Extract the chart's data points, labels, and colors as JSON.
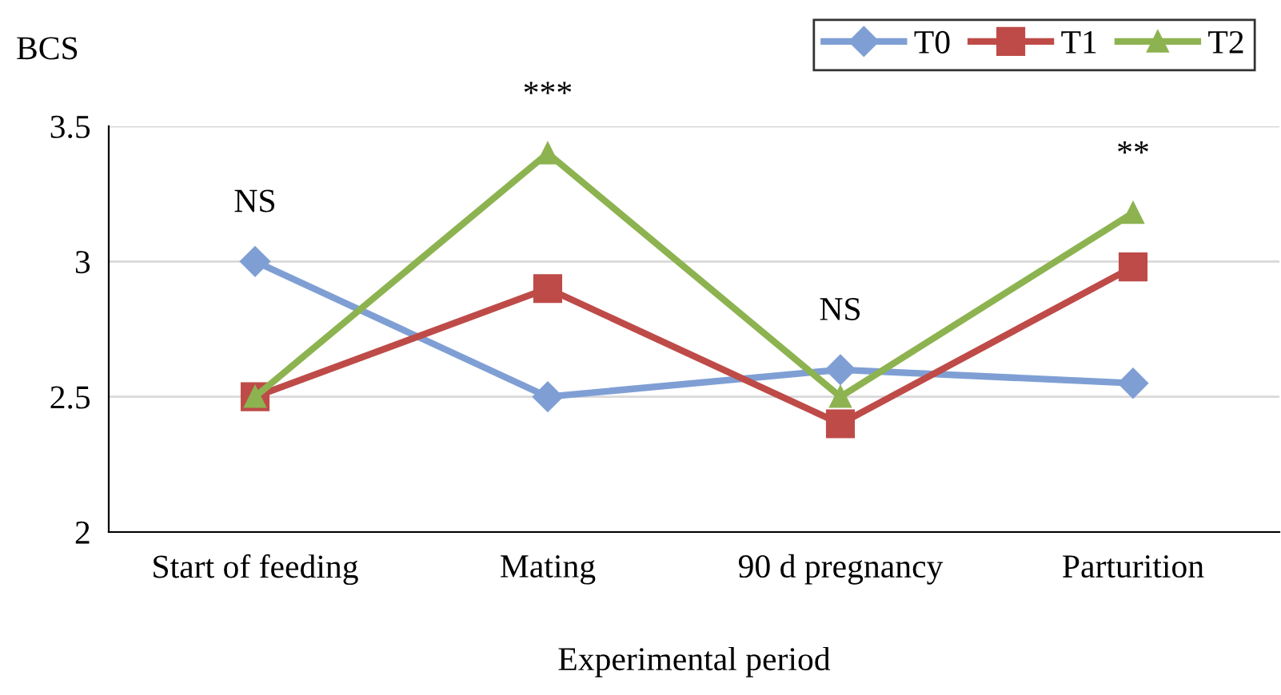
{
  "chart_data": {
    "type": "line",
    "ylabel": "BCS",
    "xlabel": "Experimental period",
    "categories": [
      "Start of feeding",
      "Mating",
      "90 d pregnancy",
      "Parturition"
    ],
    "series": [
      {
        "name": "T0",
        "color": "#7f9fd4",
        "marker": "diamond",
        "values": [
          3.0,
          2.5,
          2.6,
          2.55
        ]
      },
      {
        "name": "T1",
        "color": "#be4b48",
        "marker": "square",
        "values": [
          2.5,
          2.9,
          2.4,
          2.98
        ]
      },
      {
        "name": "T2",
        "color": "#8db350",
        "marker": "triangle",
        "values": [
          2.5,
          3.4,
          2.5,
          3.18
        ]
      }
    ],
    "ylim": [
      2,
      3.5
    ],
    "yticks": [
      2,
      2.5,
      3,
      3.5
    ],
    "grid": "y",
    "legend": "top right",
    "annotations": [
      "NS",
      "***",
      "NS",
      "**"
    ]
  }
}
